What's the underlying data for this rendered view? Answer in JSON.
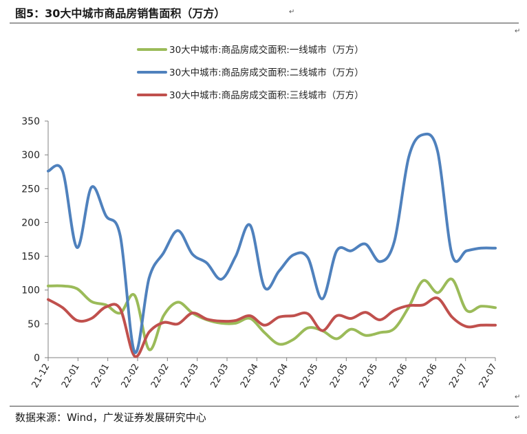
{
  "page": {
    "title": "图5：30大中城市商品房销售面积（万方）",
    "source": "数据来源：Wind，广发证券发展研究中心"
  },
  "chart_data": {
    "type": "line",
    "title": "",
    "xlabel": "",
    "ylabel": "",
    "ylim": [
      0,
      350
    ],
    "yticks": [
      0,
      50,
      100,
      150,
      200,
      250,
      300,
      350
    ],
    "xtick_labels": [
      "21-12",
      "22-01",
      "22-01",
      "22-02",
      "22-02",
      "22-03",
      "22-03",
      "22-04",
      "22-04",
      "22-05",
      "22-05",
      "22-05",
      "22-06",
      "22-06",
      "22-07",
      "22-07"
    ],
    "legend_position": "top",
    "grid": false,
    "series": [
      {
        "name": "30大中城市:商品房成交面积:一线城市（万方）",
        "color": "#9bbb59",
        "values": [
          106,
          106,
          102,
          83,
          78,
          66,
          92,
          12,
          62,
          82,
          66,
          56,
          51,
          51,
          58,
          37,
          20,
          27,
          44,
          40,
          28,
          42,
          33,
          37,
          43,
          75,
          114,
          96,
          116,
          70,
          76,
          74
        ]
      },
      {
        "name": "30大中城市:商品房成交面积:二线城市（万方）",
        "color": "#4f81bd",
        "values": [
          276,
          276,
          163,
          252,
          210,
          180,
          8,
          118,
          155,
          188,
          153,
          140,
          116,
          150,
          196,
          104,
          128,
          152,
          148,
          87,
          158,
          158,
          168,
          142,
          172,
          297,
          330,
          305,
          152,
          158,
          162,
          162
        ]
      },
      {
        "name": "30大中城市:商品房成交面积:三线城市（万方）",
        "color": "#c0504d",
        "values": [
          86,
          74,
          55,
          58,
          75,
          72,
          2,
          38,
          52,
          50,
          66,
          57,
          54,
          55,
          62,
          48,
          60,
          62,
          65,
          40,
          62,
          58,
          67,
          56,
          70,
          77,
          78,
          88,
          60,
          46,
          48,
          48
        ]
      }
    ]
  }
}
